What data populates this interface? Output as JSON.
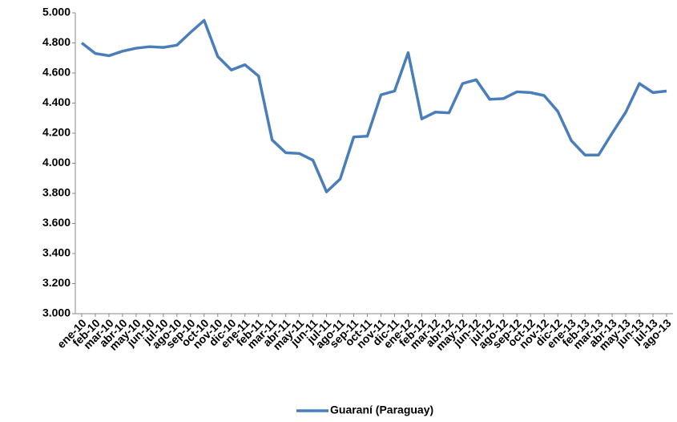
{
  "chart_data": {
    "type": "line",
    "categories": [
      "ene-10",
      "feb-10",
      "mar-10",
      "abr-10",
      "may-10",
      "jun-10",
      "jul-10",
      "ago-10",
      "sep-10",
      "oct-10",
      "nov-10",
      "dic-10",
      "ene-11",
      "feb-11",
      "mar-11",
      "abr-11",
      "may-11",
      "jun-11",
      "jul-11",
      "ago-11",
      "sep-11",
      "oct-11",
      "nov-11",
      "dic-11",
      "ene-12",
      "feb-12",
      "mar-12",
      "abr-12",
      "may-12",
      "jun-12",
      "jul-12",
      "ago-12",
      "sep-12",
      "oct-12",
      "nov-12",
      "dic-12",
      "ene-13",
      "feb-13",
      "mar-13",
      "abr-13",
      "may-13",
      "jun-13",
      "jul-13",
      "ago-13"
    ],
    "series": [
      {
        "name": "Guaraní (Paraguay)",
        "color": "#4a7ebb",
        "values": [
          4800,
          4730,
          4715,
          4745,
          4765,
          4775,
          4770,
          4785,
          4870,
          4950,
          4710,
          4620,
          4655,
          4580,
          4155,
          4070,
          4065,
          4020,
          3810,
          3895,
          4175,
          4180,
          4455,
          4480,
          4735,
          4295,
          4340,
          4335,
          4530,
          4555,
          4425,
          4430,
          4475,
          4470,
          4450,
          4345,
          4150,
          4055,
          4055,
          4200,
          4340,
          4530,
          4470,
          4480
        ]
      }
    ],
    "ylim": [
      3000,
      5000
    ],
    "yticks": [
      {
        "value": 3000,
        "label": "3.000"
      },
      {
        "value": 3200,
        "label": "3.200"
      },
      {
        "value": 3400,
        "label": "3.400"
      },
      {
        "value": 3600,
        "label": "3.600"
      },
      {
        "value": 3800,
        "label": "3.800"
      },
      {
        "value": 4000,
        "label": "4.000"
      },
      {
        "value": 4200,
        "label": "4.200"
      },
      {
        "value": 4400,
        "label": "4.400"
      },
      {
        "value": 4600,
        "label": "4.600"
      },
      {
        "value": 4800,
        "label": "4.800"
      },
      {
        "value": 5000,
        "label": "5.000"
      }
    ],
    "grid": false,
    "legend": "bottom"
  }
}
